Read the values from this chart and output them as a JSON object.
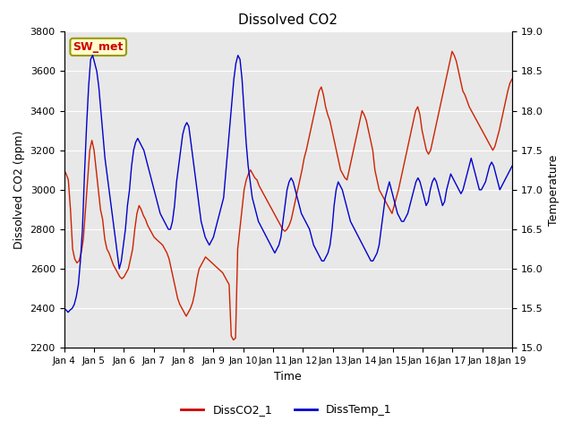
{
  "title": "Dissolved CO2",
  "xlabel": "Time",
  "ylabel_left": "Dissolved CO2 (ppm)",
  "ylabel_right": "Temperature",
  "ylim_left": [
    2200,
    3800
  ],
  "ylim_right": [
    15.0,
    19.0
  ],
  "xlim": [
    0,
    15
  ],
  "x_tick_labels": [
    "Jan 4",
    "Jan 5",
    "Jan 6",
    "Jan 7",
    "Jan 8",
    "Jan 9",
    "Jan 10",
    "Jan 11",
    "Jan 12",
    "Jan 13",
    "Jan 14",
    "Jan 15",
    "Jan 16",
    "Jan 17",
    "Jan 18",
    "Jan 19"
  ],
  "x_tick_positions": [
    0,
    1,
    2,
    3,
    4,
    5,
    6,
    7,
    8,
    9,
    10,
    11,
    12,
    13,
    14,
    15
  ],
  "legend_labels": [
    "DissCO2_1",
    "DissTemp_1"
  ],
  "legend_colors": [
    "#cc0000",
    "#0000cc"
  ],
  "box_label": "SW_met",
  "box_facecolor": "#ffffcc",
  "box_edgecolor": "#999900",
  "box_textcolor": "#cc0000",
  "bg_color": "#e8e8e8",
  "line_color_co2": "#cc2200",
  "line_color_temp": "#0000cc",
  "co2_values": [
    3100,
    3080,
    3050,
    2900,
    2700,
    2650,
    2630,
    2640,
    2680,
    2750,
    2900,
    3050,
    3200,
    3250,
    3200,
    3100,
    3000,
    2900,
    2850,
    2750,
    2700,
    2680,
    2650,
    2620,
    2600,
    2580,
    2560,
    2550,
    2560,
    2580,
    2600,
    2650,
    2700,
    2800,
    2880,
    2920,
    2900,
    2870,
    2850,
    2820,
    2800,
    2780,
    2760,
    2750,
    2740,
    2730,
    2720,
    2700,
    2680,
    2650,
    2600,
    2550,
    2500,
    2450,
    2420,
    2400,
    2380,
    2360,
    2380,
    2400,
    2430,
    2480,
    2550,
    2600,
    2620,
    2640,
    2660,
    2650,
    2640,
    2630,
    2620,
    2610,
    2600,
    2590,
    2580,
    2560,
    2540,
    2520,
    2260,
    2240,
    2250,
    2700,
    2800,
    2900,
    3000,
    3050,
    3080,
    3100,
    3080,
    3060,
    3050,
    3020,
    3000,
    2980,
    2960,
    2940,
    2920,
    2900,
    2880,
    2860,
    2840,
    2820,
    2800,
    2790,
    2800,
    2820,
    2850,
    2900,
    2950,
    3000,
    3050,
    3100,
    3160,
    3200,
    3250,
    3300,
    3350,
    3400,
    3450,
    3500,
    3520,
    3480,
    3420,
    3380,
    3350,
    3300,
    3250,
    3200,
    3150,
    3100,
    3080,
    3060,
    3050,
    3100,
    3150,
    3200,
    3250,
    3300,
    3350,
    3400,
    3380,
    3350,
    3300,
    3250,
    3200,
    3100,
    3050,
    3000,
    2980,
    2960,
    2940,
    2920,
    2900,
    2880,
    2920,
    2960,
    3000,
    3050,
    3100,
    3150,
    3200,
    3250,
    3300,
    3350,
    3400,
    3420,
    3380,
    3300,
    3250,
    3200,
    3180,
    3200,
    3250,
    3300,
    3350,
    3400,
    3450,
    3500,
    3550,
    3600,
    3650,
    3700,
    3680,
    3650,
    3600,
    3550,
    3500,
    3480,
    3450,
    3420,
    3400,
    3380,
    3360,
    3340,
    3320,
    3300,
    3280,
    3260,
    3240,
    3220,
    3200,
    3220,
    3260,
    3300,
    3350,
    3400,
    3450,
    3500,
    3540,
    3560
  ],
  "temp_values": [
    15.5,
    15.48,
    15.45,
    15.48,
    15.5,
    15.55,
    15.65,
    15.8,
    16.1,
    16.5,
    17.2,
    17.8,
    18.3,
    18.65,
    18.7,
    18.6,
    18.5,
    18.3,
    18.0,
    17.7,
    17.4,
    17.2,
    17.0,
    16.8,
    16.6,
    16.4,
    16.2,
    16.0,
    16.1,
    16.3,
    16.5,
    16.8,
    17.0,
    17.3,
    17.5,
    17.6,
    17.65,
    17.6,
    17.55,
    17.5,
    17.4,
    17.3,
    17.2,
    17.1,
    17.0,
    16.9,
    16.8,
    16.7,
    16.65,
    16.6,
    16.55,
    16.5,
    16.5,
    16.6,
    16.8,
    17.1,
    17.3,
    17.5,
    17.7,
    17.8,
    17.85,
    17.8,
    17.6,
    17.4,
    17.2,
    17.0,
    16.8,
    16.6,
    16.5,
    16.4,
    16.35,
    16.3,
    16.35,
    16.4,
    16.5,
    16.6,
    16.7,
    16.8,
    16.9,
    17.2,
    17.5,
    17.8,
    18.1,
    18.4,
    18.6,
    18.7,
    18.65,
    18.4,
    18.0,
    17.6,
    17.3,
    17.1,
    16.9,
    16.8,
    16.7,
    16.6,
    16.55,
    16.5,
    16.45,
    16.4,
    16.35,
    16.3,
    16.25,
    16.2,
    16.25,
    16.3,
    16.4,
    16.6,
    16.8,
    17.0,
    17.1,
    17.15,
    17.1,
    17.0,
    16.9,
    16.8,
    16.7,
    16.65,
    16.6,
    16.55,
    16.5,
    16.4,
    16.3,
    16.25,
    16.2,
    16.15,
    16.1,
    16.1,
    16.15,
    16.2,
    16.3,
    16.5,
    16.8,
    17.0,
    17.1,
    17.05,
    17.0,
    16.9,
    16.8,
    16.7,
    16.6,
    16.55,
    16.5,
    16.45,
    16.4,
    16.35,
    16.3,
    16.25,
    16.2,
    16.15,
    16.1,
    16.1,
    16.15,
    16.2,
    16.3,
    16.5,
    16.7,
    16.9,
    17.0,
    17.1,
    17.0,
    16.9,
    16.8,
    16.7,
    16.65,
    16.6,
    16.6,
    16.65,
    16.7,
    16.8,
    16.9,
    17.0,
    17.1,
    17.15,
    17.1,
    17.0,
    16.9,
    16.8,
    16.85,
    17.0,
    17.1,
    17.15,
    17.1,
    17.0,
    16.9,
    16.8,
    16.85,
    17.0,
    17.1,
    17.2,
    17.15,
    17.1,
    17.05,
    17.0,
    16.95,
    17.0,
    17.1,
    17.2,
    17.3,
    17.4,
    17.3,
    17.2,
    17.1,
    17.0,
    17.0,
    17.05,
    17.1,
    17.2,
    17.3,
    17.35,
    17.3,
    17.2,
    17.1,
    17.0,
    17.05,
    17.1,
    17.15,
    17.2,
    17.25,
    17.3
  ]
}
